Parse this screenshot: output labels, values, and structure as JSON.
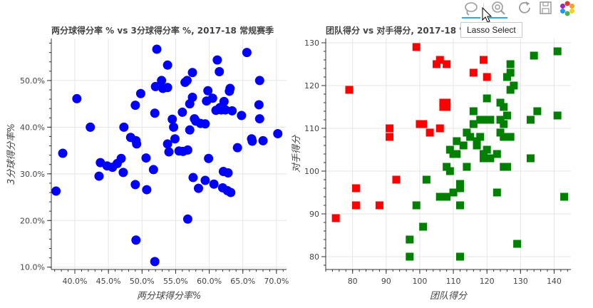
{
  "toolbar": {
    "tools": [
      {
        "name": "lasso-select-tool",
        "icon": "lasso-icon",
        "active": true
      },
      {
        "name": "wheel-zoom-tool",
        "icon": "wheel-zoom-icon",
        "active": true
      },
      {
        "name": "reset-tool",
        "icon": "reset-icon",
        "active": false
      },
      {
        "name": "save-tool",
        "icon": "save-icon",
        "active": false
      },
      {
        "name": "bokeh-logo",
        "icon": "bokeh-logo-icon",
        "active": false
      }
    ],
    "tooltip": "Lasso Select"
  },
  "chart_data": [
    {
      "type": "scatter",
      "title": "两分球得分率 % vs 3分球得分率 %, 2017-18 常规赛季",
      "xlabel": "两分球得分率%",
      "ylabel": "3分球得分率%",
      "xlim": [
        0.365,
        0.715
      ],
      "ylim": [
        0.095,
        0.59
      ],
      "xticks": [
        0.4,
        0.45,
        0.5,
        0.55,
        0.6,
        0.65,
        0.7
      ],
      "xtick_labels": [
        "40.0%",
        "45.0%",
        "50.0%",
        "55.0%",
        "60.0%",
        "65.0%",
        "70.0%"
      ],
      "yticks": [
        0.1,
        0.2,
        0.3,
        0.4,
        0.5
      ],
      "ytick_labels": [
        "10.0%",
        "20.0%",
        "30.0%",
        "40.0%",
        "50.0%"
      ],
      "grid": true,
      "colors": {
        "marker": "#0000ff"
      },
      "points": [
        [
          0.372,
          0.263
        ],
        [
          0.382,
          0.344
        ],
        [
          0.403,
          0.461
        ],
        [
          0.423,
          0.4
        ],
        [
          0.436,
          0.295
        ],
        [
          0.438,
          0.324
        ],
        [
          0.448,
          0.317
        ],
        [
          0.456,
          0.314
        ],
        [
          0.463,
          0.322
        ],
        [
          0.469,
          0.333
        ],
        [
          0.472,
          0.303
        ],
        [
          0.473,
          0.4
        ],
        [
          0.483,
          0.378
        ],
        [
          0.49,
          0.447
        ],
        [
          0.491,
          0.371
        ],
        [
          0.492,
          0.364
        ],
        [
          0.49,
          0.277
        ],
        [
          0.491,
          0.158
        ],
        [
          0.498,
          0.472
        ],
        [
          0.506,
          0.334
        ],
        [
          0.507,
          0.266
        ],
        [
          0.517,
          0.309
        ],
        [
          0.519,
          0.43
        ],
        [
          0.52,
          0.487
        ],
        [
          0.522,
          0.567
        ],
        [
          0.519,
          0.112
        ],
        [
          0.529,
          0.5
        ],
        [
          0.531,
          0.483
        ],
        [
          0.538,
          0.485
        ],
        [
          0.538,
          0.533
        ],
        [
          0.538,
          0.364
        ],
        [
          0.54,
          0.347
        ],
        [
          0.545,
          0.417
        ],
        [
          0.547,
          0.4
        ],
        [
          0.549,
          0.375
        ],
        [
          0.555,
          0.349
        ],
        [
          0.56,
          0.432
        ],
        [
          0.561,
          0.348
        ],
        [
          0.564,
          0.496
        ],
        [
          0.567,
          0.5
        ],
        [
          0.568,
          0.351
        ],
        [
          0.571,
          0.45
        ],
        [
          0.571,
          0.394
        ],
        [
          0.575,
          0.464
        ],
        [
          0.575,
          0.517
        ],
        [
          0.568,
          0.203
        ],
        [
          0.576,
          0.292
        ],
        [
          0.578,
          0.418
        ],
        [
          0.58,
          0.413
        ],
        [
          0.584,
          0.269
        ],
        [
          0.587,
          0.408
        ],
        [
          0.594,
          0.407
        ],
        [
          0.594,
          0.286
        ],
        [
          0.596,
          0.456
        ],
        [
          0.598,
          0.478
        ],
        [
          0.599,
          0.333
        ],
        [
          0.605,
          0.462
        ],
        [
          0.607,
          0.278
        ],
        [
          0.61,
          0.436
        ],
        [
          0.612,
          0.544
        ],
        [
          0.615,
          0.519
        ],
        [
          0.616,
          0.442
        ],
        [
          0.618,
          0.437
        ],
        [
          0.62,
          0.27
        ],
        [
          0.621,
          0.305
        ],
        [
          0.622,
          0.455
        ],
        [
          0.624,
          0.437
        ],
        [
          0.627,
          0.264
        ],
        [
          0.628,
          0.302
        ],
        [
          0.63,
          0.477
        ],
        [
          0.631,
          0.483
        ],
        [
          0.632,
          0.26
        ],
        [
          0.634,
          0.435
        ],
        [
          0.642,
          0.356
        ],
        [
          0.648,
          0.425
        ],
        [
          0.656,
          0.56
        ],
        [
          0.663,
          0.375
        ],
        [
          0.664,
          0.37
        ],
        [
          0.674,
          0.448
        ],
        [
          0.675,
          0.418
        ],
        [
          0.675,
          0.5
        ],
        [
          0.68,
          0.371
        ],
        [
          0.702,
          0.386
        ]
      ]
    },
    {
      "type": "scatter",
      "title": "团队得分 vs 对手得分, 2017-18 常规赛季",
      "xlabel": "团队得分",
      "ylabel": "对手得分",
      "xlim": [
        72,
        145
      ],
      "ylim": [
        77,
        131
      ],
      "xticks": [
        80,
        90,
        100,
        110,
        120,
        130,
        140
      ],
      "yticks": [
        80,
        90,
        100,
        110,
        120,
        130
      ],
      "grid": true,
      "colors": {
        "Lose": "#ff0000",
        "Win": "#008000"
      },
      "series": [
        {
          "color_key": "Lose",
          "points": [
            [
              75,
              89
            ],
            [
              79,
              119
            ],
            [
              81,
              96
            ],
            [
              81,
              92
            ],
            [
              88,
              92
            ],
            [
              91,
              110
            ],
            [
              91,
              108
            ],
            [
              93,
              98
            ],
            [
              99,
              129
            ],
            [
              100,
              111
            ],
            [
              101,
              111
            ],
            [
              103,
              109
            ],
            [
              105,
              125
            ],
            [
              106,
              110
            ],
            [
              106,
              126
            ],
            [
              107,
              116
            ],
            [
              107,
              115
            ],
            [
              108,
              125
            ],
            [
              108,
              116
            ],
            [
              108,
              115
            ],
            [
              116,
              123
            ],
            [
              119,
              126
            ],
            [
              120,
              122
            ]
          ]
        },
        {
          "color_key": "Win",
          "points": [
            [
              97,
              84
            ],
            [
              97,
              80
            ],
            [
              99,
              92
            ],
            [
              101,
              87
            ],
            [
              102,
              98
            ],
            [
              106,
              94
            ],
            [
              107,
              94
            ],
            [
              108,
              94
            ],
            [
              108,
              101
            ],
            [
              109,
              100
            ],
            [
              109,
              105
            ],
            [
              110,
              95
            ],
            [
              110,
              104
            ],
            [
              111,
              107
            ],
            [
              111,
              104
            ],
            [
              112,
              97
            ],
            [
              112,
              96
            ],
            [
              112,
              92
            ],
            [
              112,
              80
            ],
            [
              113,
              106
            ],
            [
              114,
              109
            ],
            [
              114,
              101
            ],
            [
              115,
              108
            ],
            [
              116,
              114
            ],
            [
              116,
              111
            ],
            [
              117,
              107
            ],
            [
              117,
              106
            ],
            [
              118,
              112
            ],
            [
              118,
              108
            ],
            [
              119,
              112
            ],
            [
              119,
              104
            ],
            [
              119,
              103
            ],
            [
              120,
              117
            ],
            [
              120,
              105
            ],
            [
              121,
              103
            ],
            [
              121,
              112
            ],
            [
              123,
              95
            ],
            [
              123,
              104
            ],
            [
              124,
              112
            ],
            [
              124,
              109
            ],
            [
              124,
              116
            ],
            [
              125,
              115
            ],
            [
              125,
              111
            ],
            [
              125,
              108
            ],
            [
              125,
              101
            ],
            [
              126,
              101
            ],
            [
              126,
              113
            ],
            [
              126,
              122
            ],
            [
              127,
              123
            ],
            [
              127,
              125
            ],
            [
              127,
              119
            ],
            [
              127,
              108
            ],
            [
              128,
              120
            ],
            [
              129,
              83
            ],
            [
              133,
              112
            ],
            [
              133,
              103
            ],
            [
              134,
              127
            ],
            [
              135,
              114
            ],
            [
              141,
              113
            ],
            [
              141,
              128
            ],
            [
              143,
              94
            ]
          ]
        }
      ]
    }
  ]
}
